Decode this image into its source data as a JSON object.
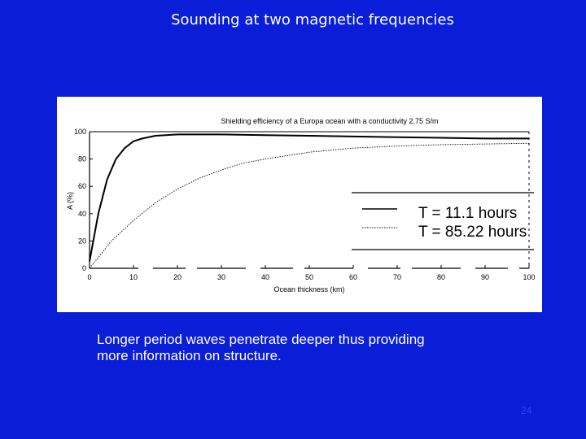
{
  "slide": {
    "title": "Sounding at two magnetic frequencies",
    "caption_line1": "Longer period waves penetrate deeper thus providing",
    "caption_line2": "more information on structure.",
    "page_number": "24"
  },
  "colors": {
    "background": "#0a1ed8",
    "panel": "#ffffff",
    "line": "#000000"
  },
  "chart_data": {
    "type": "line",
    "title": "Shielding efficiency of a Europa ocean with a conductivity 2.75 S/m",
    "xlabel": "Ocean thickness (km)",
    "ylabel": "A (%)",
    "xlim": [
      0,
      100
    ],
    "ylim": [
      0,
      100
    ],
    "xticks": [
      "0",
      "10",
      "20",
      "30",
      "40",
      "50",
      "60",
      "70",
      "80",
      "90",
      "100"
    ],
    "yticks": [
      "0",
      "20",
      "40",
      "60",
      "80",
      "100"
    ],
    "grid": false,
    "legend_position": "right",
    "series": [
      {
        "name": "T = 11.1 hours",
        "style": "solid",
        "x": [
          0,
          2,
          4,
          6,
          8,
          10,
          12,
          15,
          20,
          25,
          30,
          40,
          50,
          60,
          70,
          80,
          90,
          100
        ],
        "y": [
          5,
          40,
          65,
          80,
          88,
          93,
          95,
          97,
          98,
          98,
          98,
          97.5,
          97,
          96.5,
          96,
          95.5,
          95,
          95
        ]
      },
      {
        "name": "T = 85.22 hours",
        "style": "dotted",
        "x": [
          0,
          5,
          10,
          15,
          20,
          25,
          30,
          35,
          40,
          50,
          60,
          70,
          80,
          90,
          100
        ],
        "y": [
          0,
          20,
          35,
          48,
          58,
          66,
          72,
          77,
          80,
          85,
          88,
          89.5,
          90.5,
          91,
          91.5
        ]
      }
    ]
  }
}
